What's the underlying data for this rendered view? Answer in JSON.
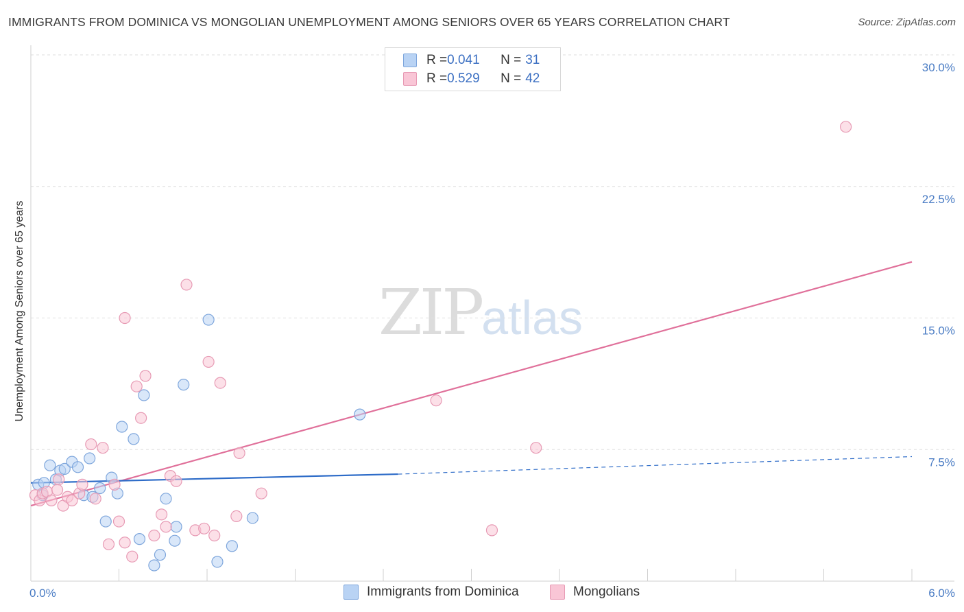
{
  "header": {
    "title": "IMMIGRANTS FROM DOMINICA VS MONGOLIAN UNEMPLOYMENT AMONG SENIORS OVER 65 YEARS CORRELATION CHART",
    "source": "Source: ZipAtlas.com"
  },
  "legend": {
    "series1": {
      "r_label": "R = ",
      "r_value": "0.041",
      "n_label": "N = ",
      "n_value": "31"
    },
    "series2": {
      "r_label": "R = ",
      "r_value": "0.529",
      "n_label": "N = ",
      "n_value": "42"
    }
  },
  "bottom_legend": {
    "series1": "Immigrants from Dominica",
    "series2": "Mongolians"
  },
  "watermark": {
    "zip": "ZIP",
    "atlas": "atlas"
  },
  "colors": {
    "blue_fill": "#b9d3f4",
    "blue_stroke": "#7ea6dc",
    "blue_line": "#2e6cc8",
    "pink_fill": "#f9c6d6",
    "pink_stroke": "#e79ab4",
    "pink_line": "#e0709a",
    "axis_text": "#4a7cc4"
  },
  "chart_data": {
    "type": "scatter",
    "title": "IMMIGRANTS FROM DOMINICA VS MONGOLIAN UNEMPLOYMENT AMONG SENIORS OVER 65 YEARS CORRELATION CHART",
    "xlabel": "",
    "ylabel": "Unemployment Among Seniors over 65 years",
    "xlim": [
      0,
      6.0
    ],
    "ylim": [
      0,
      30.0
    ],
    "x_tick_labels": [
      "0.0%",
      "6.0%"
    ],
    "y_ticks": [
      7.5,
      15.0,
      22.5,
      30.0
    ],
    "y_tick_labels": [
      "7.5%",
      "15.0%",
      "22.5%",
      "30.0%"
    ],
    "series": [
      {
        "name": "Immigrants from Dominica",
        "R": 0.041,
        "N": 31,
        "trend": {
          "x": [
            0.0,
            2.5
          ],
          "y": [
            5.6,
            6.1
          ],
          "dashed_to": {
            "x": 6.0,
            "y": 7.1
          }
        },
        "points": [
          {
            "x": 0.05,
            "y": 5.5
          },
          {
            "x": 0.08,
            "y": 4.9
          },
          {
            "x": 0.09,
            "y": 5.6
          },
          {
            "x": 0.13,
            "y": 6.6
          },
          {
            "x": 0.17,
            "y": 5.8
          },
          {
            "x": 0.2,
            "y": 6.3
          },
          {
            "x": 0.23,
            "y": 6.4
          },
          {
            "x": 0.28,
            "y": 6.8
          },
          {
            "x": 0.32,
            "y": 6.5
          },
          {
            "x": 0.36,
            "y": 4.9
          },
          {
            "x": 0.4,
            "y": 7.0
          },
          {
            "x": 0.42,
            "y": 4.8
          },
          {
            "x": 0.47,
            "y": 5.3
          },
          {
            "x": 0.51,
            "y": 3.4
          },
          {
            "x": 0.55,
            "y": 5.9
          },
          {
            "x": 0.59,
            "y": 5.0
          },
          {
            "x": 0.62,
            "y": 8.8
          },
          {
            "x": 0.7,
            "y": 8.1
          },
          {
            "x": 0.77,
            "y": 10.6
          },
          {
            "x": 0.74,
            "y": 2.4
          },
          {
            "x": 0.84,
            "y": 0.9
          },
          {
            "x": 0.88,
            "y": 1.5
          },
          {
            "x": 0.92,
            "y": 4.7
          },
          {
            "x": 0.98,
            "y": 2.3
          },
          {
            "x": 0.99,
            "y": 3.1
          },
          {
            "x": 1.04,
            "y": 11.2
          },
          {
            "x": 1.21,
            "y": 14.9
          },
          {
            "x": 1.27,
            "y": 1.1
          },
          {
            "x": 1.37,
            "y": 2.0
          },
          {
            "x": 1.51,
            "y": 3.6
          },
          {
            "x": 2.24,
            "y": 9.5
          }
        ]
      },
      {
        "name": "Mongolians",
        "R": 0.529,
        "N": 42,
        "trend": {
          "x": [
            0.0,
            6.0
          ],
          "y": [
            4.3,
            18.2
          ]
        },
        "points": [
          {
            "x": 0.03,
            "y": 4.9
          },
          {
            "x": 0.06,
            "y": 4.6
          },
          {
            "x": 0.08,
            "y": 5.0
          },
          {
            "x": 0.11,
            "y": 5.1
          },
          {
            "x": 0.14,
            "y": 4.6
          },
          {
            "x": 0.18,
            "y": 5.2
          },
          {
            "x": 0.19,
            "y": 5.8
          },
          {
            "x": 0.22,
            "y": 4.3
          },
          {
            "x": 0.25,
            "y": 4.8
          },
          {
            "x": 0.28,
            "y": 4.6
          },
          {
            "x": 0.33,
            "y": 5.0
          },
          {
            "x": 0.35,
            "y": 5.5
          },
          {
            "x": 0.41,
            "y": 7.8
          },
          {
            "x": 0.44,
            "y": 4.7
          },
          {
            "x": 0.49,
            "y": 7.6
          },
          {
            "x": 0.53,
            "y": 2.1
          },
          {
            "x": 0.57,
            "y": 5.5
          },
          {
            "x": 0.6,
            "y": 3.4
          },
          {
            "x": 0.64,
            "y": 2.2
          },
          {
            "x": 0.64,
            "y": 15.0
          },
          {
            "x": 0.69,
            "y": 1.4
          },
          {
            "x": 0.72,
            "y": 11.1
          },
          {
            "x": 0.75,
            "y": 9.3
          },
          {
            "x": 0.78,
            "y": 11.7
          },
          {
            "x": 0.84,
            "y": 2.6
          },
          {
            "x": 0.89,
            "y": 3.8
          },
          {
            "x": 0.92,
            "y": 3.1
          },
          {
            "x": 0.95,
            "y": 6.0
          },
          {
            "x": 0.99,
            "y": 5.7
          },
          {
            "x": 1.06,
            "y": 16.9
          },
          {
            "x": 1.12,
            "y": 2.9
          },
          {
            "x": 1.18,
            "y": 3.0
          },
          {
            "x": 1.21,
            "y": 12.5
          },
          {
            "x": 1.25,
            "y": 2.6
          },
          {
            "x": 1.29,
            "y": 11.3
          },
          {
            "x": 1.4,
            "y": 3.7
          },
          {
            "x": 1.42,
            "y": 7.3
          },
          {
            "x": 1.57,
            "y": 5.0
          },
          {
            "x": 2.76,
            "y": 10.3
          },
          {
            "x": 3.14,
            "y": 2.9
          },
          {
            "x": 3.44,
            "y": 7.6
          },
          {
            "x": 5.55,
            "y": 25.9
          }
        ]
      }
    ]
  }
}
